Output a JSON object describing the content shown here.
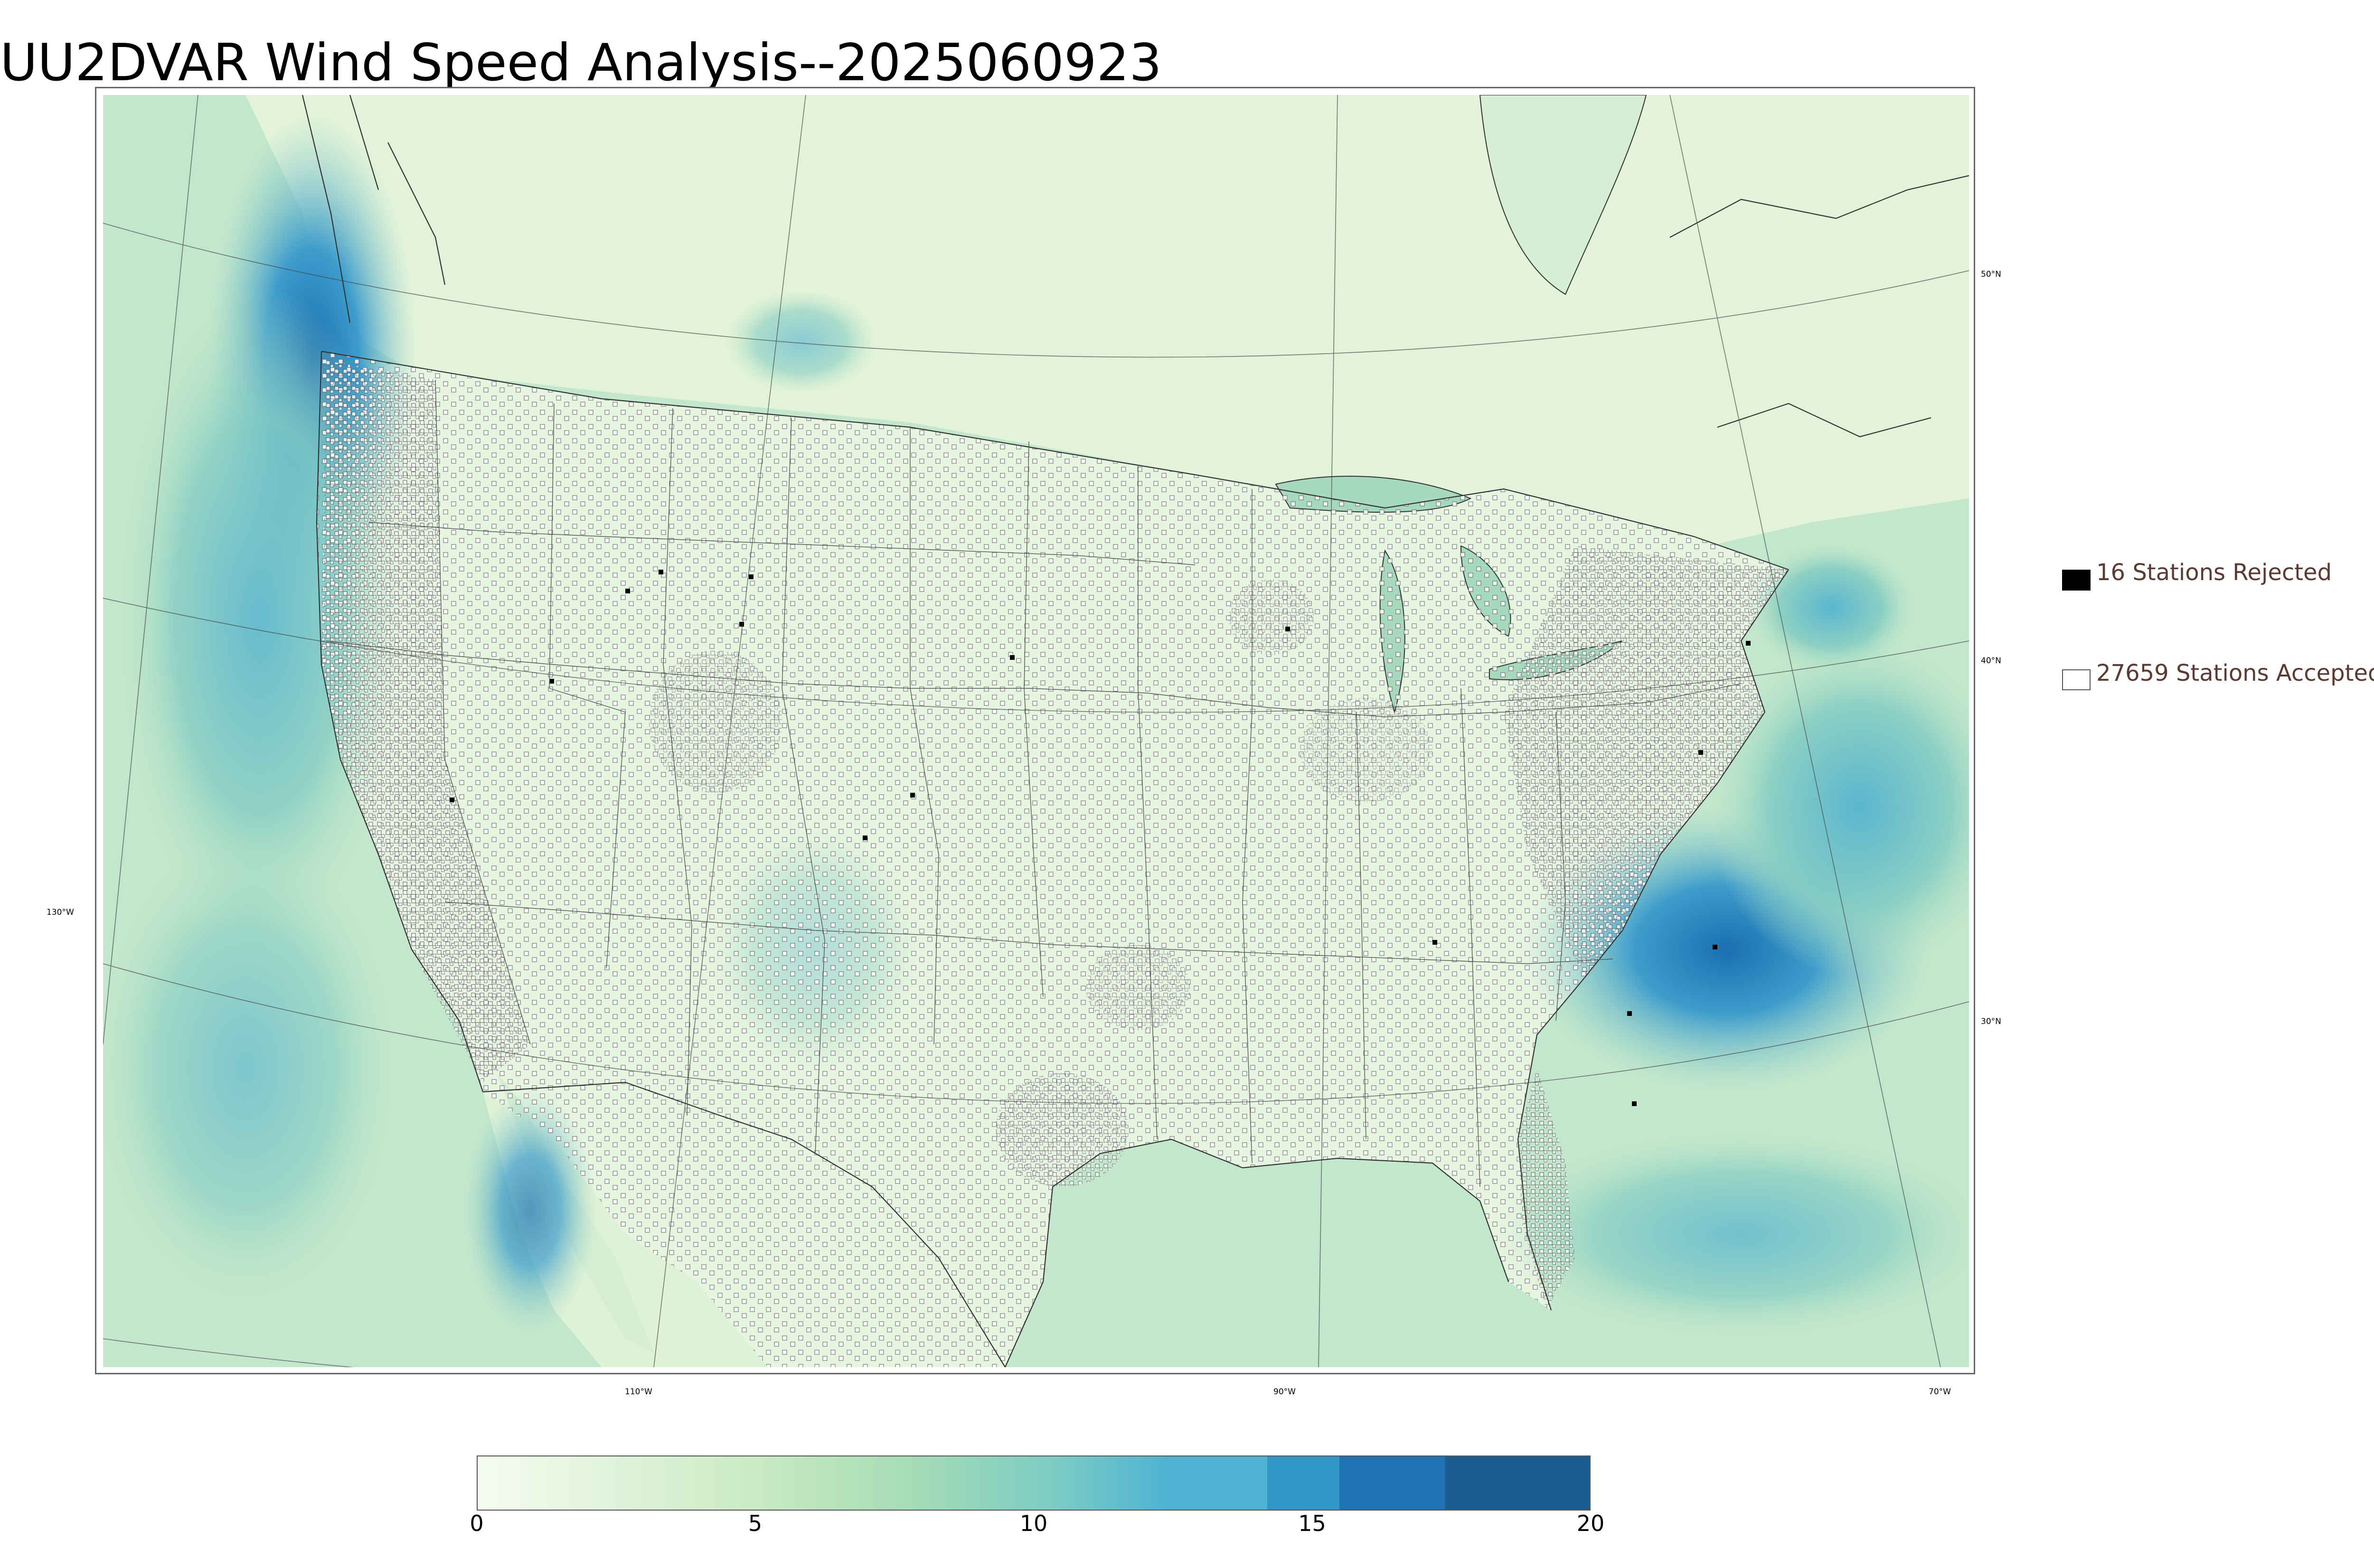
{
  "title": "UU2DVAR Wind Speed Analysis--2025060923",
  "legend": {
    "rejected_label": "16 Stations Rejected",
    "accepted_label": "27659 Stations Accepted",
    "rejected_color": "#000000",
    "accepted_color": "#ffffff"
  },
  "lon_labels": [
    "130°W",
    "110°W",
    "90°W",
    "70°W"
  ],
  "lat_labels": [
    "50°N",
    "40°N",
    "30°N"
  ],
  "colorbar": {
    "min": 0,
    "max": 20,
    "ticks": [
      "0",
      "5",
      "10",
      "15",
      "20"
    ],
    "colors": [
      "#f7fcf0",
      "#e0f3db",
      "#ccebc5",
      "#a8ddb5",
      "#7bccc4",
      "#4eb3d3",
      "#3096c6",
      "#2171b5",
      "#1a5e90"
    ]
  },
  "map": {
    "land_color": "#e6f5df",
    "ocean_color": "#b9e2c8",
    "strong_wind_color": "#2b8cc4",
    "boundary_color": "#222222"
  }
}
